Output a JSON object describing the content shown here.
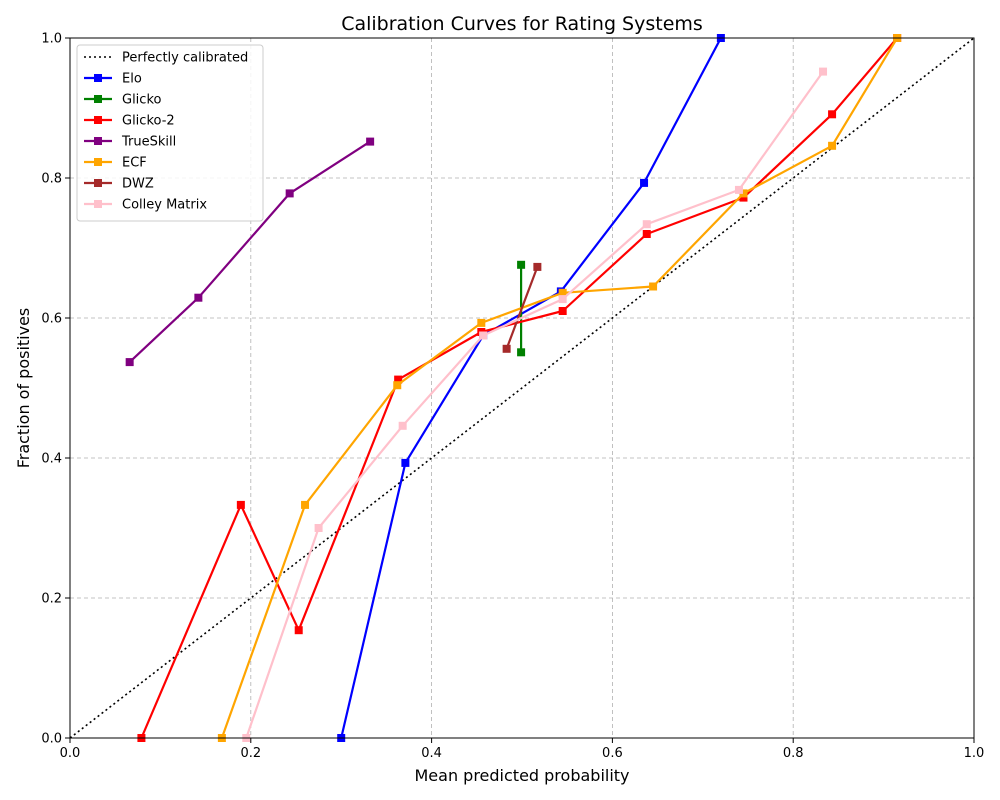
{
  "chart_data": {
    "type": "line",
    "title": "Calibration Curves for Rating Systems",
    "xlabel": "Mean predicted probability",
    "ylabel": "Fraction of positives",
    "xlim": [
      0.0,
      1.0
    ],
    "ylim": [
      0.0,
      1.0
    ],
    "xticks": [
      "0.0",
      "0.2",
      "0.4",
      "0.6",
      "0.8",
      "1.0"
    ],
    "yticks": [
      "0.0",
      "0.2",
      "0.4",
      "0.6",
      "0.8",
      "1.0"
    ],
    "grid": true,
    "legend_position": "top-left",
    "reference": {
      "name": "Perfectly calibrated",
      "color": "#000000",
      "style": "dotted",
      "x": [
        0.0,
        1.0
      ],
      "y": [
        0.0,
        1.0
      ]
    },
    "series": [
      {
        "name": "Elo",
        "color": "#0000ff",
        "x": [
          0.3,
          0.371,
          0.457,
          0.543,
          0.635,
          0.72
        ],
        "y": [
          0.0,
          0.393,
          0.575,
          0.638,
          0.793,
          1.0
        ]
      },
      {
        "name": "Glicko",
        "color": "#008000",
        "x": [
          0.499,
          0.499
        ],
        "y": [
          0.551,
          0.676
        ]
      },
      {
        "name": "Glicko-2",
        "color": "#ff0000",
        "x": [
          0.079,
          0.189,
          0.253,
          0.363,
          0.455,
          0.545,
          0.638,
          0.745,
          0.843,
          0.915
        ],
        "y": [
          0.0,
          0.333,
          0.154,
          0.512,
          0.58,
          0.61,
          0.72,
          0.772,
          0.891,
          1.0
        ]
      },
      {
        "name": "TrueSkill",
        "color": "#800080",
        "x": [
          0.066,
          0.142,
          0.243,
          0.332
        ],
        "y": [
          0.537,
          0.629,
          0.778,
          0.852
        ]
      },
      {
        "name": "ECF",
        "color": "#ffa500",
        "x": [
          0.168,
          0.26,
          0.362,
          0.455,
          0.545,
          0.645,
          0.745,
          0.843,
          0.915
        ],
        "y": [
          0.0,
          0.333,
          0.504,
          0.593,
          0.636,
          0.645,
          0.778,
          0.846,
          1.0
        ]
      },
      {
        "name": "DWZ",
        "color": "#a52a2a",
        "x": [
          0.483,
          0.517
        ],
        "y": [
          0.556,
          0.673
        ]
      },
      {
        "name": "Colley Matrix",
        "color": "#ffc0cb",
        "x": [
          0.195,
          0.275,
          0.368,
          0.457,
          0.545,
          0.638,
          0.74,
          0.833
        ],
        "y": [
          0.0,
          0.3,
          0.446,
          0.575,
          0.627,
          0.734,
          0.783,
          0.952
        ]
      }
    ]
  }
}
